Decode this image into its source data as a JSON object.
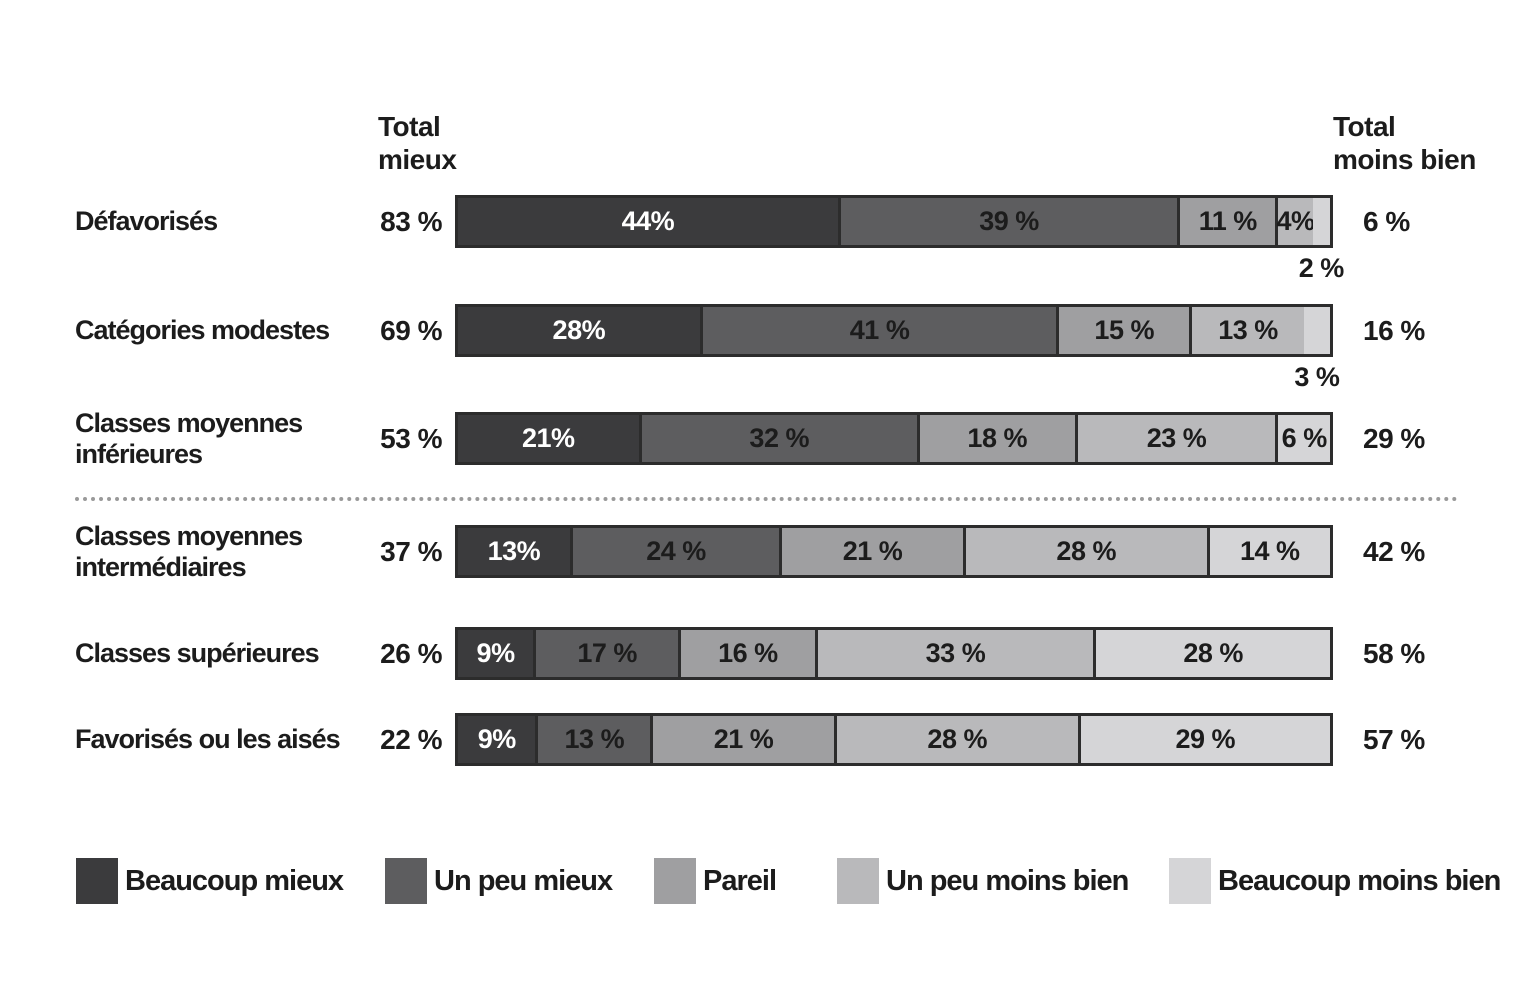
{
  "chart_data": {
    "type": "bar",
    "stacked": true,
    "orientation": "horizontal",
    "unit": "%",
    "column_headers": {
      "left_line1": "Total",
      "left_line2": "mieux",
      "right_line1": "Total",
      "right_line2": "moins bien"
    },
    "legend": [
      {
        "label": "Beaucoup mieux",
        "color": "#3b3b3d"
      },
      {
        "label": "Un peu mieux",
        "color": "#5d5d5f"
      },
      {
        "label": "Pareil",
        "color": "#9f9fa1"
      },
      {
        "label": "Un peu moins bien",
        "color": "#b9b9bb"
      },
      {
        "label": "Beaucoup moins bien",
        "color": "#d5d5d7"
      }
    ],
    "rows": [
      {
        "category": "Défavorisés",
        "total_better": "83 %",
        "total_worse": "6 %",
        "values": [
          44,
          39,
          11,
          4,
          2
        ],
        "labels": [
          "44%",
          "39 %",
          "11 %",
          "4%",
          "2 %"
        ],
        "label_below_index": 4
      },
      {
        "category": "Catégories modestes",
        "total_better": "69 %",
        "total_worse": "16 %",
        "values": [
          28,
          41,
          15,
          13,
          3
        ],
        "labels": [
          "28%",
          "41 %",
          "15 %",
          "13 %",
          "3 %"
        ],
        "label_below_index": 4
      },
      {
        "category": "Classes moyennes inférieures",
        "total_better": "53 %",
        "total_worse": "29 %",
        "values": [
          21,
          32,
          18,
          23,
          6
        ],
        "labels": [
          "21%",
          "32 %",
          "18 %",
          "23 %",
          "6 %"
        ],
        "label_below_index": null
      },
      {
        "category": "Classes moyennes intermédiaires",
        "total_better": "37 %",
        "total_worse": "42 %",
        "values": [
          13,
          24,
          21,
          28,
          14
        ],
        "labels": [
          "13%",
          "24 %",
          "21 %",
          "28 %",
          "14 %"
        ],
        "label_below_index": null
      },
      {
        "category": "Classes supérieures",
        "total_better": "26 %",
        "total_worse": "58 %",
        "values": [
          9,
          17,
          16,
          33,
          28
        ],
        "labels": [
          "9%",
          "17 %",
          "16 %",
          "33 %",
          "28 %"
        ],
        "label_below_index": null
      },
      {
        "category": "Favorisés ou les aisés",
        "total_better": "22 %",
        "total_worse": "57 %",
        "values": [
          9,
          13,
          21,
          28,
          29
        ],
        "labels": [
          "9%",
          "13 %",
          "21 %",
          "28 %",
          "29 %"
        ],
        "label_below_index": null
      }
    ],
    "styles": {
      "bar_border": "#2c2c2c",
      "text": "#1c1c1c",
      "first_segment_text": "#ffffff",
      "divider": "#9a9a9a"
    }
  }
}
